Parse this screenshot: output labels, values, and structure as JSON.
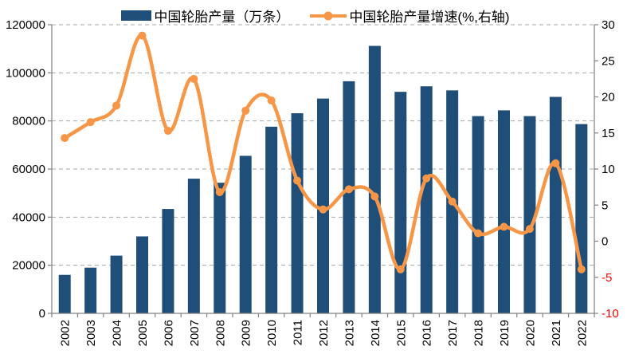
{
  "chart_data": {
    "type": "combo-bar-line",
    "title": "",
    "categories": [
      "2002",
      "2003",
      "2004",
      "2005",
      "2006",
      "2007",
      "2008",
      "2009",
      "2010",
      "2011",
      "2012",
      "2013",
      "2014",
      "2015",
      "2016",
      "2017",
      "2018",
      "2019",
      "2020",
      "2021",
      "2022"
    ],
    "series": [
      {
        "name": "中国轮胎产量（万条）",
        "type": "bar",
        "axis": "left",
        "color": "#1F4E79",
        "values": [
          16000,
          19000,
          24000,
          32000,
          43400,
          56000,
          54300,
          65500,
          77600,
          83200,
          89300,
          96500,
          111200,
          92100,
          94400,
          92700,
          82000,
          84400,
          82000,
          90000,
          78700
        ]
      },
      {
        "name": "中国轮胎产量增速(%,右轴)",
        "type": "line",
        "axis": "right",
        "color": "#F79646",
        "values": [
          14.3,
          16.5,
          18.8,
          28.5,
          15.3,
          22.5,
          6.8,
          18.1,
          19.5,
          8.4,
          4.4,
          7.2,
          6.2,
          -3.9,
          8.7,
          5.5,
          1.1,
          2.0,
          1.7,
          10.8,
          -3.9
        ]
      }
    ],
    "left_axis": {
      "min": 0,
      "max": 120000,
      "tick_step": 20000,
      "tick_labels": [
        "0",
        "20000",
        "40000",
        "60000",
        "80000",
        "100000",
        "120000"
      ]
    },
    "right_axis": {
      "min": -10,
      "max": 30,
      "tick_step": 5,
      "tick_labels": [
        "-10",
        "-5",
        "0",
        "5",
        "10",
        "15",
        "20",
        "25",
        "30"
      ],
      "negative_tick_color": "#FF0000"
    },
    "grid": {
      "horizontal": true,
      "style": "dashed",
      "color": "#A6A6A6"
    },
    "axis_color": "#808080",
    "text_color": "#000000",
    "background": "#FFFFFF",
    "legend_position": "top"
  }
}
